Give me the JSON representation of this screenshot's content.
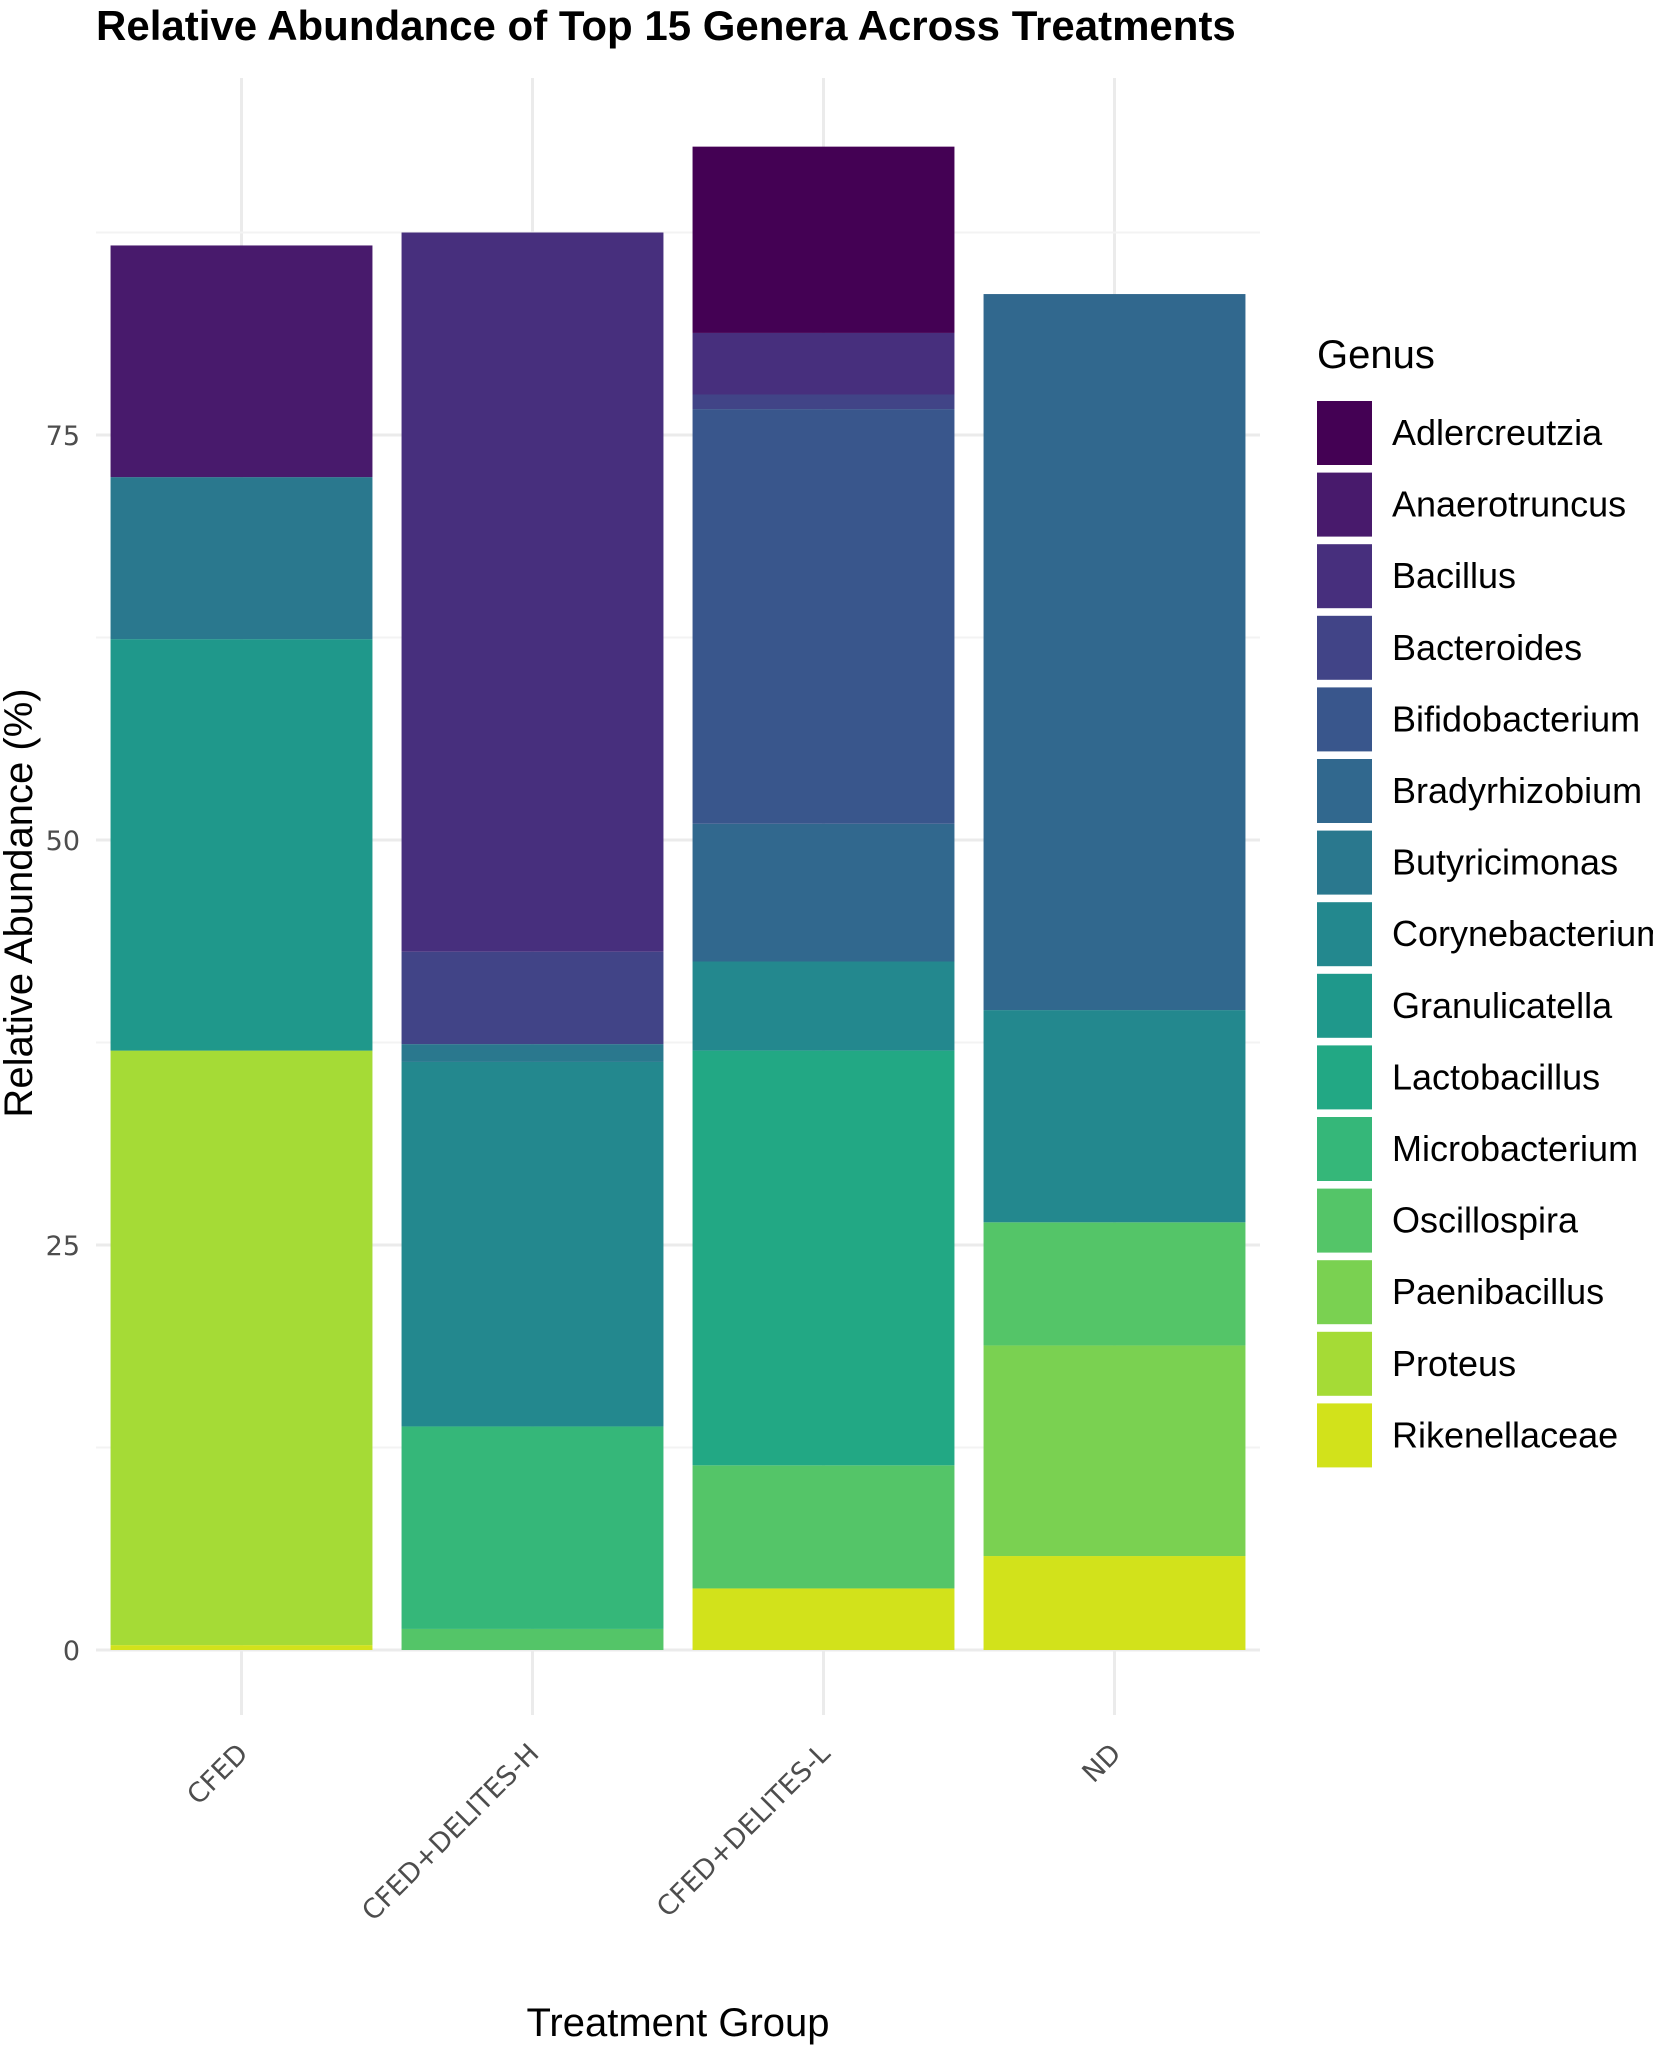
{
  "chart_data": {
    "type": "bar",
    "stacked": true,
    "title": "Relative Abundance of Top 15 Genera Across Treatments",
    "xlabel": "Treatment Group",
    "ylabel": "Relative Abundance (%)",
    "ylim": [
      -1.5,
      91
    ],
    "yticks": [
      0,
      25,
      50,
      75
    ],
    "grid": true,
    "legend_position": "right",
    "legend_title": "Genus",
    "categories": [
      "CFED",
      "CFED+DELITES-H",
      "CFED+DELITES-L",
      "ND"
    ],
    "series": [
      {
        "name": "Adlercreutzia",
        "color": "#440154",
        "values": [
          0,
          0,
          11.5,
          0
        ]
      },
      {
        "name": "Anaerotruncus",
        "color": "#481A6C",
        "values": [
          14.3,
          0,
          0,
          0
        ]
      },
      {
        "name": "Bacillus",
        "color": "#472F7D",
        "values": [
          0,
          44.4,
          3.8,
          0
        ]
      },
      {
        "name": "Bacteroides",
        "color": "#414487",
        "values": [
          0,
          5.7,
          0.9,
          0
        ]
      },
      {
        "name": "Bifidobacterium",
        "color": "#39568C",
        "values": [
          0,
          0,
          25.6,
          0
        ]
      },
      {
        "name": "Bradyrhizobium",
        "color": "#31688E",
        "values": [
          0,
          0,
          8.5,
          44.2
        ]
      },
      {
        "name": "Butyricimonas",
        "color": "#2A788E",
        "values": [
          10.0,
          1.1,
          0,
          0
        ]
      },
      {
        "name": "Corynebacterium",
        "color": "#23888E",
        "values": [
          0,
          22.5,
          5.5,
          13.1
        ]
      },
      {
        "name": "Granulicatella",
        "color": "#1F988B",
        "values": [
          25.4,
          0,
          0,
          0
        ]
      },
      {
        "name": "Lactobacillus",
        "color": "#22A884",
        "values": [
          0,
          0,
          25.6,
          0
        ]
      },
      {
        "name": "Microbacterium",
        "color": "#35B779",
        "values": [
          0,
          12.5,
          0,
          0
        ]
      },
      {
        "name": "Oscillospira",
        "color": "#54C568",
        "values": [
          0,
          1.3,
          7.6,
          7.6
        ]
      },
      {
        "name": "Paenibacillus",
        "color": "#7AD151",
        "values": [
          0,
          0,
          0,
          13.0
        ]
      },
      {
        "name": "Proteus",
        "color": "#A5DB36",
        "values": [
          36.7,
          0,
          0,
          0
        ]
      },
      {
        "name": "Rikenellaceae",
        "color": "#D2E21B",
        "values": [
          0.3,
          0,
          3.8,
          5.8
        ]
      }
    ],
    "display_colors": [
      "#440154",
      "#481A6C",
      "#472F7D",
      "#414487",
      "#39568C",
      "#31688E",
      "#2A788E",
      "#23888E",
      "#1F988B",
      "#22A884",
      "#35B779",
      "#54C568",
      "#7AD151",
      "#A5DB36",
      "#D2E21B",
      "#FDE725"
    ]
  }
}
